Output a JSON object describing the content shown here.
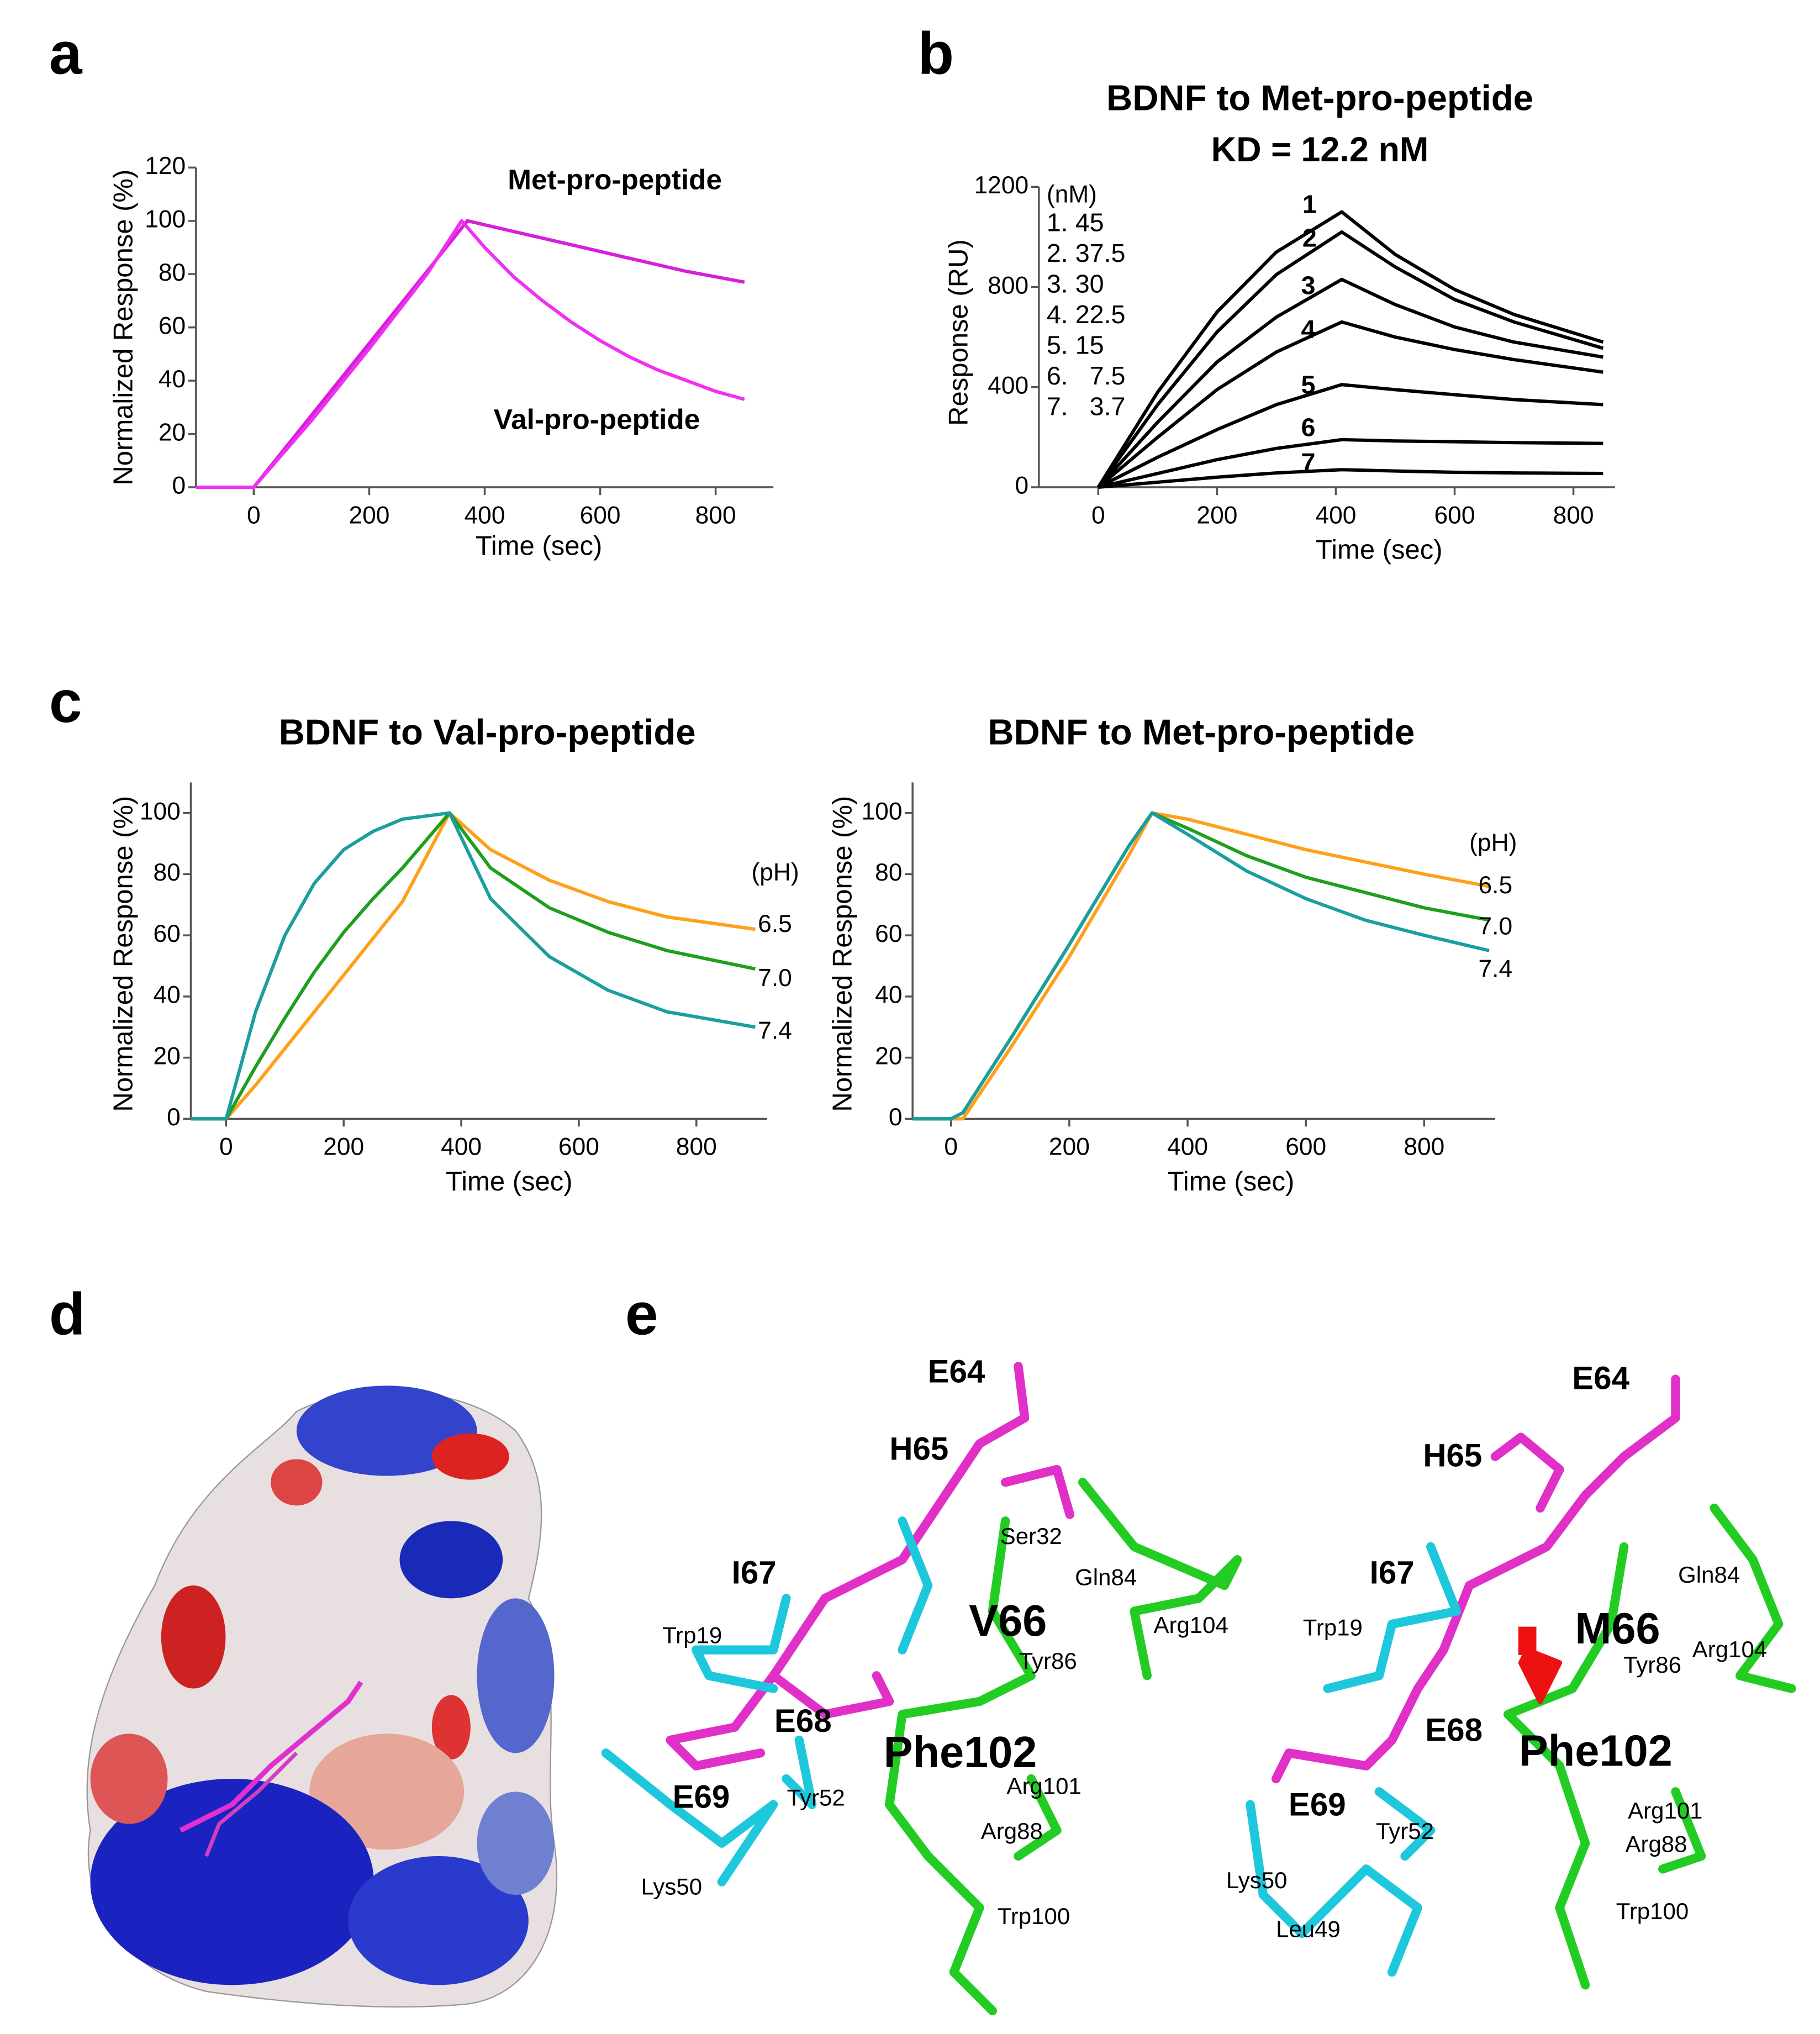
{
  "panel_labels": [
    "a",
    "b",
    "c",
    "d",
    "e"
  ],
  "chart_data": [
    {
      "type": "line",
      "xlabel": "Time (sec)",
      "ylabel": "Normalized Response (%)",
      "xlim": [
        -100,
        900
      ],
      "ylim": [
        0,
        120
      ],
      "xticks": [
        0,
        200,
        400,
        600,
        800
      ],
      "yticks": [
        0,
        20,
        40,
        60,
        80,
        100,
        120
      ],
      "series": [
        {
          "name": "Met-pro-peptide",
          "color": "#d81ed8",
          "x": [
            -100,
            0,
            100,
            200,
            300,
            370,
            450,
            550,
            650,
            750,
            850
          ],
          "values": [
            0,
            0,
            27,
            54,
            81,
            100,
            96,
            91,
            86,
            81,
            77
          ]
        },
        {
          "name": "Val-pro-peptide",
          "color": "#f030f0",
          "x": [
            -100,
            0,
            100,
            200,
            300,
            360,
            400,
            450,
            500,
            550,
            600,
            650,
            700,
            750,
            800,
            850
          ],
          "values": [
            0,
            0,
            25,
            52,
            80,
            100,
            90,
            79,
            70,
            62,
            55,
            49,
            44,
            40,
            36,
            33
          ]
        }
      ]
    },
    {
      "type": "line",
      "title": "BDNF to Met-pro-peptide",
      "subtitle": "KD = 12.2 nM",
      "xlabel": "Time (sec)",
      "ylabel": "Response (RU)",
      "xlim": [
        -100,
        870
      ],
      "ylim": [
        0,
        1200
      ],
      "xticks": [
        0,
        200,
        400,
        600,
        800
      ],
      "yticks": [
        0,
        400,
        800,
        1200
      ],
      "legend_title": "(nM)",
      "concentrations": [
        "1. 45",
        "2. 37.5",
        "3. 30",
        "4. 22.5",
        "5. 15",
        "6.   7.5",
        "7.   3.7"
      ],
      "series": [
        {
          "name": "1",
          "color": "#000000",
          "x": [
            0,
            100,
            200,
            300,
            410,
            500,
            600,
            700,
            850
          ],
          "values": [
            0,
            380,
            700,
            940,
            1100,
            930,
            790,
            690,
            580
          ]
        },
        {
          "name": "2",
          "color": "#000000",
          "x": [
            0,
            100,
            200,
            300,
            410,
            500,
            600,
            700,
            850
          ],
          "values": [
            0,
            330,
            620,
            850,
            1020,
            880,
            750,
            660,
            555
          ]
        },
        {
          "name": "3",
          "color": "#000000",
          "x": [
            0,
            100,
            200,
            300,
            410,
            500,
            600,
            700,
            850
          ],
          "values": [
            0,
            260,
            500,
            680,
            830,
            730,
            640,
            580,
            520
          ]
        },
        {
          "name": "4",
          "color": "#000000",
          "x": [
            0,
            100,
            200,
            300,
            410,
            500,
            600,
            700,
            850
          ],
          "values": [
            0,
            200,
            390,
            540,
            660,
            600,
            550,
            510,
            460
          ]
        },
        {
          "name": "5",
          "color": "#000000",
          "x": [
            0,
            100,
            200,
            300,
            410,
            500,
            600,
            700,
            850
          ],
          "values": [
            0,
            120,
            230,
            330,
            410,
            390,
            370,
            350,
            330
          ]
        },
        {
          "name": "6",
          "color": "#000000",
          "x": [
            0,
            100,
            200,
            300,
            410,
            500,
            600,
            700,
            850
          ],
          "values": [
            0,
            55,
            110,
            155,
            190,
            185,
            182,
            178,
            175
          ]
        },
        {
          "name": "7",
          "color": "#000000",
          "x": [
            0,
            100,
            200,
            300,
            410,
            500,
            600,
            700,
            850
          ],
          "values": [
            0,
            20,
            40,
            57,
            70,
            65,
            60,
            57,
            55
          ]
        }
      ]
    },
    {
      "type": "line",
      "title": "BDNF to Val-pro-peptide",
      "xlabel": "Time (sec)",
      "ylabel": "Normalized Response (%)",
      "xlim": [
        -60,
        920
      ],
      "ylim": [
        0,
        110
      ],
      "xticks": [
        0,
        200,
        400,
        600,
        800
      ],
      "yticks": [
        0,
        20,
        40,
        60,
        80,
        100
      ],
      "legend_title": "(pH)",
      "series": [
        {
          "name": "6.5",
          "color": "#ff9f1a",
          "x": [
            -60,
            0,
            50,
            100,
            150,
            200,
            250,
            300,
            380,
            450,
            550,
            650,
            750,
            900
          ],
          "values": [
            0,
            0,
            11,
            23,
            35,
            47,
            59,
            71,
            100,
            88,
            78,
            71,
            66,
            62
          ]
        },
        {
          "name": "7.0",
          "color": "#1f9e1f",
          "x": [
            -60,
            0,
            50,
            100,
            150,
            200,
            250,
            300,
            380,
            450,
            550,
            650,
            750,
            900
          ],
          "values": [
            0,
            0,
            17,
            33,
            48,
            61,
            72,
            82,
            100,
            82,
            69,
            61,
            55,
            49
          ]
        },
        {
          "name": "7.4",
          "color": "#1a9e9e",
          "x": [
            -60,
            0,
            50,
            100,
            150,
            200,
            250,
            300,
            380,
            450,
            550,
            650,
            750,
            900
          ],
          "values": [
            0,
            0,
            35,
            60,
            77,
            88,
            94,
            98,
            100,
            72,
            53,
            42,
            35,
            30
          ]
        }
      ]
    },
    {
      "type": "line",
      "title": "BDNF to Met-pro-peptide",
      "xlabel": "Time (sec)",
      "ylabel": "Normalized Response (%)",
      "xlim": [
        -65,
        920
      ],
      "ylim": [
        0,
        110
      ],
      "xticks": [
        0,
        200,
        400,
        600,
        800
      ],
      "yticks": [
        0,
        20,
        40,
        60,
        80,
        100
      ],
      "legend_title": "(pH)",
      "series": [
        {
          "name": "6.5",
          "color": "#ff9f1a",
          "x": [
            -65,
            0,
            20,
            100,
            200,
            300,
            340,
            400,
            500,
            600,
            700,
            800,
            910
          ],
          "values": [
            0,
            0,
            0,
            23,
            53,
            86,
            100,
            98,
            93,
            88,
            84,
            80,
            76
          ]
        },
        {
          "name": "7.0",
          "color": "#1f9e1f",
          "x": [
            -65,
            0,
            20,
            100,
            200,
            300,
            340,
            400,
            500,
            600,
            700,
            800,
            910
          ],
          "values": [
            0,
            0,
            2,
            26,
            57,
            89,
            100,
            95,
            86,
            79,
            74,
            69,
            65
          ]
        },
        {
          "name": "7.4",
          "color": "#1a9e9e",
          "x": [
            -65,
            0,
            20,
            100,
            200,
            300,
            340,
            400,
            500,
            600,
            700,
            800,
            910
          ],
          "values": [
            0,
            0,
            2,
            26,
            57,
            89,
            100,
            93,
            81,
            72,
            65,
            60,
            55
          ]
        }
      ]
    }
  ],
  "structure_labels": {
    "left": [
      "E64",
      "H65",
      "Ser32",
      "Gln84",
      "I67",
      "Arg104",
      "Trp19",
      "V66",
      "Tyr86",
      "E68",
      "Phe102",
      "Arg101",
      "E69",
      "Tyr52",
      "Arg88",
      "Lys50",
      "Trp100"
    ],
    "right": [
      "E64",
      "H65",
      "Gln84",
      "I67",
      "Trp19",
      "M66",
      "Arg104",
      "Tyr86",
      "E68",
      "Phe102",
      "E69",
      "Arg101",
      "Tyr52",
      "Arg88",
      "Lys50",
      "Trp100",
      "Leu49"
    ]
  }
}
